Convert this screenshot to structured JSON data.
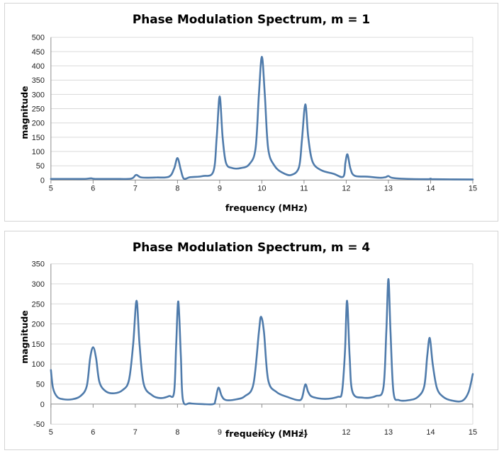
{
  "chart_data": [
    {
      "type": "line",
      "title": "Phase Modulation Spectrum, m = 1",
      "xlabel": "frequency (MHz)",
      "ylabel": "magnitude",
      "xlim": [
        5,
        15
      ],
      "ylim": [
        0,
        500
      ],
      "xticks": [
        5,
        6,
        7,
        8,
        9,
        10,
        11,
        12,
        13,
        14,
        15
      ],
      "yticks": [
        0,
        50,
        100,
        150,
        200,
        250,
        300,
        350,
        400,
        450,
        500
      ],
      "grid": true,
      "series": [
        {
          "points": [
            [
              5,
              4
            ],
            [
              5.5,
              4
            ],
            [
              5.8,
              4
            ],
            [
              5.95,
              6
            ],
            [
              6.05,
              4
            ],
            [
              6.5,
              4
            ],
            [
              6.9,
              5
            ],
            [
              7.02,
              18
            ],
            [
              7.15,
              9
            ],
            [
              7.5,
              9
            ],
            [
              7.8,
              12
            ],
            [
              7.92,
              40
            ],
            [
              8.0,
              77
            ],
            [
              8.08,
              35
            ],
            [
              8.15,
              5
            ],
            [
              8.3,
              10
            ],
            [
              8.6,
              14
            ],
            [
              8.85,
              30
            ],
            [
              8.93,
              150
            ],
            [
              9.0,
              293
            ],
            [
              9.07,
              150
            ],
            [
              9.15,
              60
            ],
            [
              9.3,
              42
            ],
            [
              9.5,
              42
            ],
            [
              9.7,
              55
            ],
            [
              9.85,
              110
            ],
            [
              9.93,
              300
            ],
            [
              10.0,
              432
            ],
            [
              10.07,
              300
            ],
            [
              10.15,
              110
            ],
            [
              10.3,
              50
            ],
            [
              10.5,
              25
            ],
            [
              10.7,
              18
            ],
            [
              10.88,
              45
            ],
            [
              10.95,
              140
            ],
            [
              11.03,
              265
            ],
            [
              11.1,
              150
            ],
            [
              11.2,
              65
            ],
            [
              11.4,
              35
            ],
            [
              11.7,
              22
            ],
            [
              11.93,
              12
            ],
            [
              11.98,
              60
            ],
            [
              12.03,
              90
            ],
            [
              12.1,
              40
            ],
            [
              12.2,
              15
            ],
            [
              12.5,
              12
            ],
            [
              12.8,
              8
            ],
            [
              12.93,
              10
            ],
            [
              13.0,
              14
            ],
            [
              13.08,
              8
            ],
            [
              13.3,
              5
            ],
            [
              13.9,
              3
            ],
            [
              14.0,
              5
            ],
            [
              14.1,
              3
            ],
            [
              15,
              2
            ]
          ]
        }
      ]
    },
    {
      "type": "line",
      "title": "Phase Modulation Spectrum, m = 4",
      "xlabel": "frequency (MHz)",
      "ylabel": "magnitude",
      "xlim": [
        5,
        15
      ],
      "ylim": [
        -50,
        350
      ],
      "xticks": [
        5,
        6,
        7,
        8,
        9,
        10,
        11,
        12,
        13,
        14,
        15
      ],
      "yticks": [
        -50,
        0,
        50,
        100,
        150,
        200,
        250,
        300,
        350
      ],
      "grid": true,
      "series": [
        {
          "points": [
            [
              5,
              85
            ],
            [
              5.05,
              40
            ],
            [
              5.15,
              18
            ],
            [
              5.3,
              12
            ],
            [
              5.5,
              12
            ],
            [
              5.7,
              20
            ],
            [
              5.85,
              45
            ],
            [
              5.93,
              115
            ],
            [
              6.0,
              142
            ],
            [
              6.07,
              115
            ],
            [
              6.15,
              55
            ],
            [
              6.3,
              32
            ],
            [
              6.5,
              27
            ],
            [
              6.7,
              35
            ],
            [
              6.85,
              60
            ],
            [
              6.95,
              150
            ],
            [
              7.03,
              258
            ],
            [
              7.1,
              150
            ],
            [
              7.2,
              50
            ],
            [
              7.4,
              22
            ],
            [
              7.6,
              15
            ],
            [
              7.8,
              20
            ],
            [
              7.92,
              30
            ],
            [
              7.97,
              150
            ],
            [
              8.02,
              256
            ],
            [
              8.08,
              120
            ],
            [
              8.13,
              10
            ],
            [
              8.3,
              2
            ],
            [
              8.6,
              0
            ],
            [
              8.85,
              0
            ],
            [
              8.9,
              10
            ],
            [
              8.97,
              41
            ],
            [
              9.05,
              20
            ],
            [
              9.15,
              10
            ],
            [
              9.4,
              12
            ],
            [
              9.6,
              20
            ],
            [
              9.8,
              50
            ],
            [
              9.93,
              180
            ],
            [
              9.98,
              218
            ],
            [
              10.05,
              180
            ],
            [
              10.15,
              60
            ],
            [
              10.35,
              30
            ],
            [
              10.6,
              18
            ],
            [
              10.85,
              10
            ],
            [
              10.95,
              15
            ],
            [
              11.03,
              49
            ],
            [
              11.1,
              30
            ],
            [
              11.2,
              18
            ],
            [
              11.5,
              13
            ],
            [
              11.8,
              18
            ],
            [
              11.9,
              30
            ],
            [
              11.97,
              130
            ],
            [
              12.02,
              258
            ],
            [
              12.08,
              120
            ],
            [
              12.15,
              30
            ],
            [
              12.4,
              16
            ],
            [
              12.7,
              20
            ],
            [
              12.88,
              40
            ],
            [
              12.95,
              180
            ],
            [
              13.0,
              312
            ],
            [
              13.05,
              180
            ],
            [
              13.12,
              30
            ],
            [
              13.25,
              10
            ],
            [
              13.5,
              10
            ],
            [
              13.7,
              18
            ],
            [
              13.85,
              45
            ],
            [
              13.92,
              120
            ],
            [
              13.98,
              165
            ],
            [
              14.05,
              100
            ],
            [
              14.15,
              40
            ],
            [
              14.3,
              18
            ],
            [
              14.5,
              9
            ],
            [
              14.75,
              8
            ],
            [
              14.9,
              30
            ],
            [
              15,
              75
            ]
          ]
        }
      ]
    }
  ]
}
